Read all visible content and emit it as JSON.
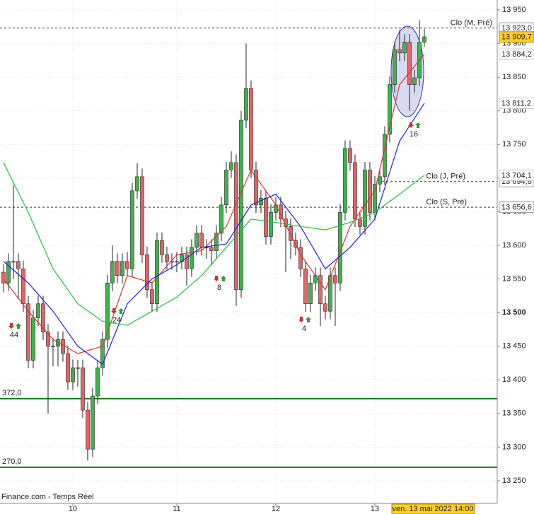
{
  "chart_data": {
    "type": "candlestick",
    "footer": "Finance.com - Temps Réel",
    "cursor_label": "ven. 13 mai 2022 14:00",
    "xlim": [
      0.29,
      100.29
    ],
    "ylim": [
      13216.3,
      13964.7
    ],
    "grid": true,
    "up_color": "#3cb44b",
    "down_color": "#e06666",
    "xticks": [
      {
        "value": 15,
        "label": "10"
      },
      {
        "value": 36,
        "label": "11"
      },
      {
        "value": 56,
        "label": "12"
      },
      {
        "value": 76,
        "label": "13"
      }
    ],
    "yticks": [
      {
        "value": 13250,
        "label": "13 250"
      },
      {
        "value": 13300,
        "label": "13 300"
      },
      {
        "value": 13350,
        "label": "13 350"
      },
      {
        "value": 13400,
        "label": "13 400"
      },
      {
        "value": 13450,
        "label": "13 450"
      },
      {
        "value": 13500,
        "label": "13 500",
        "bold": true
      },
      {
        "value": 13550,
        "label": "13 550"
      },
      {
        "value": 13600,
        "label": "13 600"
      },
      {
        "value": 13650,
        "label": "13 650"
      },
      {
        "value": 13700,
        "label": "13 700"
      },
      {
        "value": 13750,
        "label": "13 750"
      },
      {
        "value": 13800,
        "label": "13 800"
      },
      {
        "value": 13850,
        "label": "13 850"
      },
      {
        "value": 13900,
        "label": "13 900"
      },
      {
        "value": 13950,
        "label": "13 950"
      }
    ],
    "x": [
      1,
      2,
      3,
      4,
      5,
      6,
      7,
      8,
      9,
      10,
      11,
      12,
      13,
      14,
      15,
      16,
      17,
      18,
      19,
      20,
      21,
      22,
      23,
      24,
      25,
      26,
      27,
      28,
      29,
      30,
      31,
      32,
      33,
      34,
      35,
      36,
      37,
      38,
      39,
      40,
      41,
      42,
      43,
      44,
      45,
      46,
      47,
      48,
      49,
      50,
      51,
      52,
      53,
      54,
      55,
      56,
      57,
      58,
      59,
      60,
      61,
      62,
      63,
      64,
      65,
      66,
      67,
      68,
      69,
      70,
      71,
      72,
      73,
      74,
      75,
      76,
      77,
      78,
      79,
      80,
      81,
      82,
      83,
      84,
      85,
      86
    ],
    "open": [
      13560,
      13544,
      13576,
      13576,
      13565,
      13513,
      13429,
      13492,
      13513,
      13471,
      13450,
      13450,
      13460,
      13439,
      13397,
      13418,
      13418,
      13355,
      13297,
      13376,
      13418,
      13460,
      13544,
      13576,
      13555,
      13576,
      13565,
      13681,
      13702,
      13586,
      13534,
      13513,
      13607,
      13586,
      13576,
      13576,
      13576,
      13586,
      13565,
      13597,
      13618,
      13597,
      13597,
      13592,
      13618,
      13660,
      13712,
      13723,
      13534,
      13786,
      13833,
      13712,
      13660,
      13670,
      13613,
      13649,
      13660,
      13639,
      13628,
      13607,
      13597,
      13565,
      13513,
      13544,
      13555,
      13513,
      13502,
      13555,
      13544,
      13649,
      13744,
      13723,
      13639,
      13628,
      13712,
      13649,
      13691,
      13702,
      13765,
      13839,
      13891,
      13886,
      13902,
      13839,
      13849,
      13902
    ],
    "high": [
      13572,
      13588,
      13690,
      13588,
      13577,
      13525,
      13504,
      13525,
      13525,
      13483,
      13462,
      13472,
      13472,
      13451,
      13430,
      13430,
      13430,
      13367,
      13388,
      13430,
      13472,
      13556,
      13600,
      13588,
      13588,
      13590,
      13693,
      13722,
      13714,
      13598,
      13546,
      13619,
      13619,
      13598,
      13588,
      13590,
      13598,
      13598,
      13609,
      13630,
      13630,
      13609,
      13609,
      13630,
      13672,
      13724,
      13740,
      13735,
      13800,
      13900,
      13845,
      13724,
      13682,
      13682,
      13661,
      13672,
      13672,
      13651,
      13640,
      13619,
      13609,
      13577,
      13556,
      13567,
      13567,
      13525,
      13567,
      13567,
      13661,
      13756,
      13756,
      13735,
      13651,
      13724,
      13724,
      13703,
      13714,
      13777,
      13851,
      13903,
      13920,
      13914,
      13914,
      13861,
      13935,
      13922
    ],
    "low": [
      13530,
      13532,
      13550,
      13520,
      13501,
      13417,
      13417,
      13480,
      13459,
      13350,
      13420,
      13420,
      13427,
      13385,
      13385,
      13390,
      13343,
      13280,
      13285,
      13364,
      13406,
      13448,
      13532,
      13543,
      13543,
      13553,
      13553,
      13669,
      13574,
      13522,
      13501,
      13501,
      13574,
      13564,
      13564,
      13560,
      13564,
      13540,
      13553,
      13585,
      13585,
      13580,
      13570,
      13580,
      13606,
      13648,
      13700,
      13510,
      13522,
      13774,
      13700,
      13648,
      13648,
      13601,
      13601,
      13637,
      13627,
      13560,
      13580,
      13585,
      13553,
      13501,
      13501,
      13532,
      13480,
      13490,
      13490,
      13480,
      13532,
      13637,
      13711,
      13627,
      13616,
      13616,
      13637,
      13637,
      13679,
      13690,
      13753,
      13827,
      13874,
      13874,
      13800,
      13827,
      13837,
      13895
    ],
    "close": [
      13544,
      13576,
      13576,
      13565,
      13513,
      13429,
      13492,
      13513,
      13471,
      13450,
      13450,
      13460,
      13439,
      13397,
      13418,
      13418,
      13355,
      13297,
      13376,
      13418,
      13460,
      13544,
      13576,
      13555,
      13576,
      13565,
      13681,
      13702,
      13586,
      13534,
      13513,
      13607,
      13586,
      13576,
      13576,
      13576,
      13586,
      13565,
      13597,
      13618,
      13597,
      13597,
      13592,
      13618,
      13660,
      13712,
      13723,
      13534,
      13786,
      13833,
      13712,
      13660,
      13670,
      13613,
      13649,
      13660,
      13639,
      13628,
      13607,
      13597,
      13565,
      13513,
      13544,
      13555,
      13513,
      13502,
      13555,
      13544,
      13649,
      13744,
      13723,
      13639,
      13628,
      13712,
      13649,
      13691,
      13702,
      13765,
      13839,
      13891,
      13886,
      13902,
      13839,
      13849,
      13902,
      13910
    ],
    "last_price": {
      "value": 13909.7,
      "label": "13 909,7"
    },
    "series": [
      {
        "color": "#e03030",
        "x": [
          1,
          6,
          11,
          16,
          21,
          26,
          31,
          36,
          41,
          46,
          51,
          56,
          61,
          66,
          71,
          76,
          81,
          86
        ],
        "values": [
          13550,
          13502,
          13460,
          13439,
          13450,
          13555,
          13544,
          13586,
          13592,
          13628,
          13712,
          13660,
          13586,
          13534,
          13628,
          13681,
          13839,
          13884.2
        ],
        "last_label": "13 884,2"
      },
      {
        "color": "#2020d0",
        "x": [
          1,
          6,
          11,
          16,
          21,
          26,
          31,
          36,
          41,
          46,
          51,
          56,
          61,
          66,
          71,
          76,
          81,
          86
        ],
        "values": [
          13576,
          13544,
          13502,
          13450,
          13423,
          13513,
          13550,
          13571,
          13597,
          13602,
          13660,
          13676,
          13628,
          13565,
          13597,
          13639,
          13755,
          13811.2
        ],
        "last_label": "13 811,2"
      },
      {
        "color": "#22c040",
        "x": [
          1,
          6,
          11,
          16,
          21,
          26,
          31,
          36,
          41,
          46,
          51,
          56,
          61,
          66,
          71,
          76,
          81,
          86
        ],
        "values": [
          13723,
          13649,
          13565,
          13513,
          13487,
          13481,
          13502,
          13523,
          13555,
          13597,
          13639,
          13634,
          13628,
          13623,
          13634,
          13649,
          13676,
          13704.1
        ],
        "last_label": "13 704,1"
      }
    ],
    "reference_lines": [
      {
        "label": "Clo (M, Pré)",
        "value": 13923.0,
        "value_label": "13 923,0"
      },
      {
        "label": "Clo (J, Pré)",
        "value": 13694.8,
        "value_label": "13 694,8"
      },
      {
        "label": "Clo (S, Pré)",
        "value": 13656.6,
        "value_label": "13 656,6"
      }
    ],
    "levels": [
      {
        "value": 13372.0,
        "label": "372,0"
      },
      {
        "value": 13270.0,
        "label": "270,0"
      }
    ],
    "level_color": "#1a7a1a",
    "annotations": [
      {
        "text": "44"
      },
      {
        "text": "24"
      },
      {
        "text": "8"
      },
      {
        "text": "4"
      },
      {
        "text": "16"
      }
    ]
  }
}
